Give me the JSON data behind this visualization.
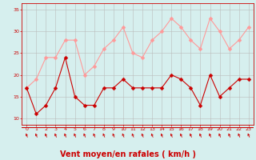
{
  "x": [
    0,
    1,
    2,
    3,
    4,
    5,
    6,
    7,
    8,
    9,
    10,
    11,
    12,
    13,
    14,
    15,
    16,
    17,
    18,
    19,
    20,
    21,
    22,
    23
  ],
  "wind_avg": [
    17,
    11,
    13,
    17,
    24,
    15,
    13,
    13,
    17,
    17,
    19,
    17,
    17,
    17,
    17,
    20,
    19,
    17,
    13,
    20,
    15,
    17,
    19,
    19
  ],
  "wind_gust": [
    17,
    19,
    24,
    24,
    28,
    28,
    20,
    22,
    26,
    28,
    31,
    25,
    24,
    28,
    30,
    33,
    31,
    28,
    26,
    33,
    30,
    26,
    28,
    31
  ],
  "bg_color": "#d6efee",
  "avg_color": "#cc0000",
  "gust_color": "#ff9999",
  "grid_color": "#bbbbbb",
  "xlabel": "Vent moyen/en rafales ( km/h )",
  "xlabel_color": "#cc0000",
  "xlabel_fontsize": 7,
  "yticks": [
    10,
    15,
    20,
    25,
    30,
    35
  ],
  "xticks": [
    0,
    1,
    2,
    3,
    4,
    5,
    6,
    7,
    8,
    9,
    10,
    11,
    12,
    13,
    14,
    15,
    16,
    17,
    18,
    19,
    20,
    21,
    22,
    23
  ],
  "ylim": [
    8.5,
    36.5
  ],
  "xlim": [
    -0.5,
    23.5
  ]
}
